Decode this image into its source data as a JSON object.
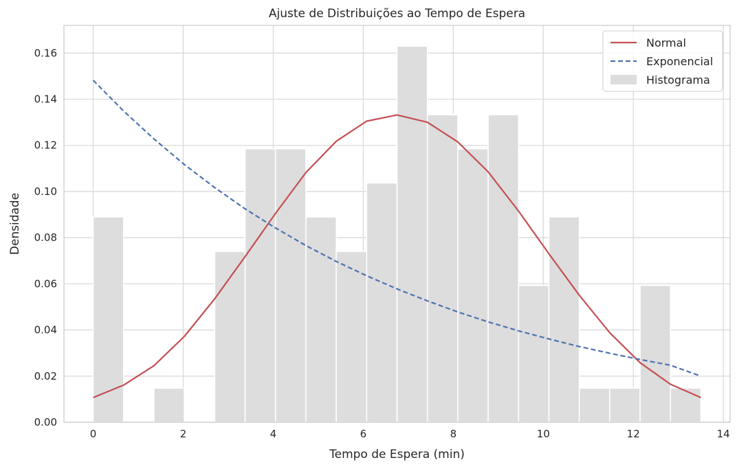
{
  "chart_data": {
    "type": "bar",
    "title": "Ajuste de Distribuições ao Tempo de Espera",
    "xlabel": "Tempo de Espera (min)",
    "ylabel": "Densidade",
    "xlim": [
      -0.65,
      14.15
    ],
    "ylim": [
      0,
      0.172
    ],
    "xticks": [
      0,
      2,
      4,
      6,
      8,
      10,
      12,
      14
    ],
    "yticks": [
      0.0,
      0.02,
      0.04,
      0.06,
      0.08,
      0.1,
      0.12,
      0.14,
      0.16
    ],
    "grid": true,
    "legend_position": "top-right",
    "histogram": {
      "name": "Histograma",
      "color": "#dddddd",
      "bin_start": 0,
      "bin_width": 0.675,
      "densities": [
        0.089,
        0,
        0.0148,
        0,
        0.074,
        0.1185,
        0.1185,
        0.089,
        0.074,
        0.1037,
        0.163,
        0.1333,
        0.1185,
        0.1333,
        0.0593,
        0.089,
        0.0148,
        0.0148,
        0.0593,
        0.0148
      ]
    },
    "series": [
      {
        "name": "Normal",
        "style": "solid",
        "color": "#c44e52",
        "x": [
          0,
          0.675,
          1.35,
          2.025,
          2.7,
          3.375,
          4.05,
          4.725,
          5.4,
          6.075,
          6.75,
          7.425,
          8.1,
          8.775,
          9.45,
          10.125,
          10.8,
          11.475,
          12.15,
          12.825,
          13.5
        ],
        "y": [
          0.0107,
          0.0161,
          0.0245,
          0.0372,
          0.0535,
          0.0718,
          0.0905,
          0.1082,
          0.1218,
          0.1305,
          0.1332,
          0.13,
          0.1215,
          0.1085,
          0.0915,
          0.073,
          0.055,
          0.0388,
          0.0258,
          0.0165,
          0.0107
        ]
      },
      {
        "name": "Exponencial",
        "style": "dashed",
        "color": "#4c72b0",
        "x": [
          0,
          0.675,
          1.35,
          2.025,
          2.7,
          3.375,
          4.05,
          4.725,
          5.4,
          6.075,
          6.75,
          7.425,
          8.1,
          8.775,
          9.45,
          10.125,
          10.8,
          11.475,
          12.15,
          12.825,
          13.5
        ],
        "y": [
          0.1482,
          0.1349,
          0.1228,
          0.1117,
          0.1017,
          0.0925,
          0.0842,
          0.0766,
          0.0697,
          0.0635,
          0.0578,
          0.0526,
          0.0478,
          0.0435,
          0.0396,
          0.0361,
          0.0328,
          0.0299,
          0.0272,
          0.0247,
          0.02
        ]
      }
    ]
  }
}
